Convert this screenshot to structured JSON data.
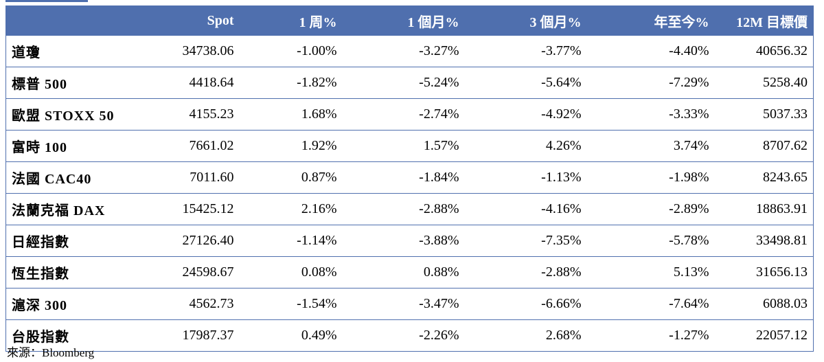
{
  "headers": [
    "",
    "Spot",
    "1 周%",
    "1 個月%",
    "3 個月%",
    "年至今%",
    "12M 目標價"
  ],
  "rows": [
    {
      "name": "道瓊",
      "spot": "34738.06",
      "w1": "-1.00%",
      "m1": "-3.27%",
      "m3": "-3.77%",
      "ytd": "-4.40%",
      "target": "40656.32"
    },
    {
      "name": "標普 500",
      "spot": "4418.64",
      "w1": "-1.82%",
      "m1": "-5.24%",
      "m3": "-5.64%",
      "ytd": "-7.29%",
      "target": "5258.40"
    },
    {
      "name": "歐盟 STOXX 50",
      "spot": "4155.23",
      "w1": "1.68%",
      "m1": "-2.74%",
      "m3": "-4.92%",
      "ytd": "-3.33%",
      "target": "5037.33"
    },
    {
      "name": "富時 100",
      "spot": "7661.02",
      "w1": "1.92%",
      "m1": "1.57%",
      "m3": "4.26%",
      "ytd": "3.74%",
      "target": "8707.62"
    },
    {
      "name": "法國 CAC40",
      "spot": "7011.60",
      "w1": "0.87%",
      "m1": "-1.84%",
      "m3": "-1.13%",
      "ytd": "-1.98%",
      "target": "8243.65"
    },
    {
      "name": "法蘭克福 DAX",
      "spot": "15425.12",
      "w1": "2.16%",
      "m1": "-2.88%",
      "m3": "-4.16%",
      "ytd": "-2.89%",
      "target": "18863.91"
    },
    {
      "name": "日經指數",
      "spot": "27126.40",
      "w1": "-1.14%",
      "m1": "-3.88%",
      "m3": "-7.35%",
      "ytd": "-5.78%",
      "target": "33498.81"
    },
    {
      "name": "恆生指數",
      "spot": "24598.67",
      "w1": "0.08%",
      "m1": "0.88%",
      "m3": "-2.88%",
      "ytd": "5.13%",
      "target": "31656.13"
    },
    {
      "name": "滬深 300",
      "spot": "4562.73",
      "w1": "-1.54%",
      "m1": "-3.47%",
      "m3": "-6.66%",
      "ytd": "-7.64%",
      "target": "6088.03"
    },
    {
      "name": "台股指數",
      "spot": "17987.37",
      "w1": "0.49%",
      "m1": "-2.26%",
      "m3": "2.68%",
      "ytd": "-1.27%",
      "target": "22057.12"
    }
  ],
  "source": "來源：Bloomberg",
  "colors": {
    "header_bg": "#4f6fae",
    "header_text": "#ffffff",
    "border": "#4f6fae"
  }
}
